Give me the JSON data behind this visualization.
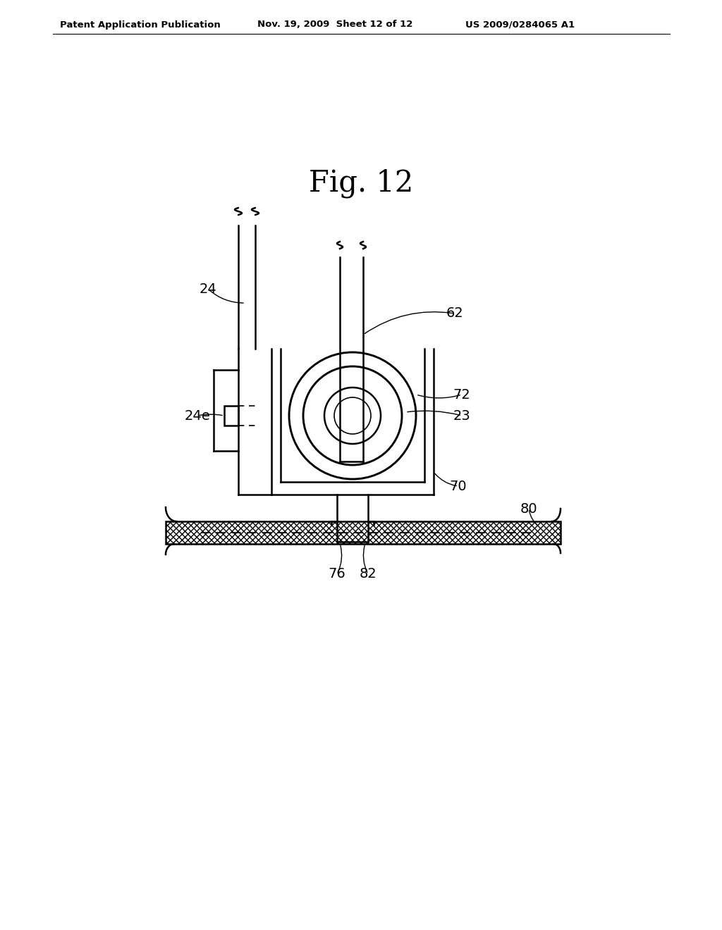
{
  "background_color": "#ffffff",
  "title": "Fig. 12",
  "header_text": "Patent Application Publication",
  "header_date": "Nov. 19, 2009  Sheet 12 of 12",
  "header_patent": "US 2009/0284065 A1",
  "line_color": "#000000",
  "lw_main": 1.8,
  "lw_thin": 1.2,
  "lw_label": 1.0
}
